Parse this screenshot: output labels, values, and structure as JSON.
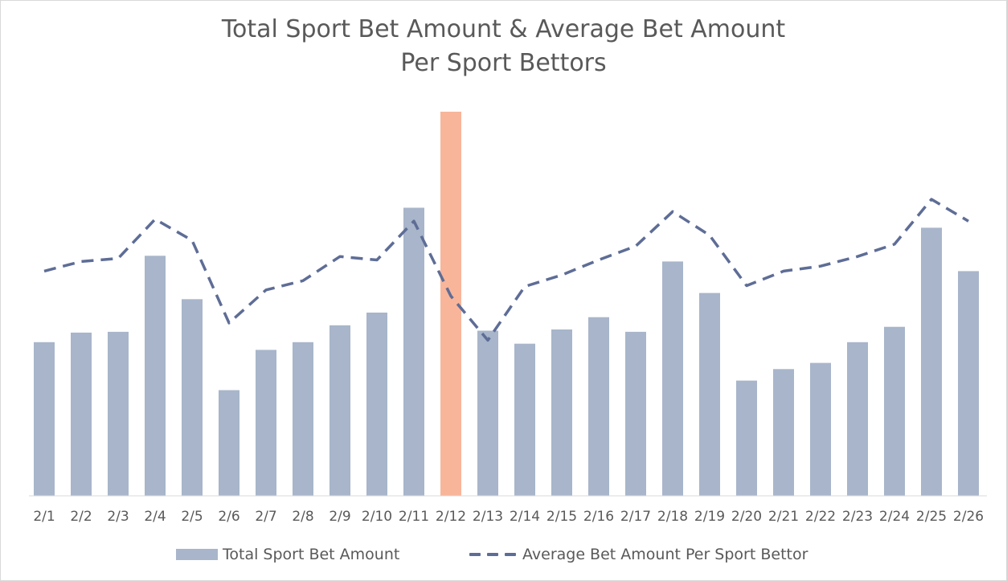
{
  "chart_data": {
    "type": "bar",
    "title": "Total Sport Bet Amount & Average Bet Amount",
    "subtitle": "Per Sport Bettors",
    "categories": [
      "2/1",
      "2/2",
      "2/3",
      "2/4",
      "2/5",
      "2/6",
      "2/7",
      "2/8",
      "2/9",
      "2/10",
      "2/11",
      "2/12",
      "2/13",
      "2/14",
      "2/15",
      "2/16",
      "2/17",
      "2/18",
      "2/19",
      "2/20",
      "2/21",
      "2/22",
      "2/23",
      "2/24",
      "2/25",
      "2/26"
    ],
    "series": [
      {
        "name": "Total Sport Bet Amount",
        "type": "bar",
        "values": [
          40,
          42.5,
          42.7,
          62.5,
          51.2,
          27.5,
          38,
          40,
          44.4,
          47.7,
          75,
          100,
          43,
          39.6,
          43.3,
          46.5,
          42.7,
          61,
          52.8,
          30,
          33,
          34.6,
          40,
          44,
          69.8,
          58.5
        ],
        "highlight_index": 11,
        "color": "#a8b5ca",
        "highlight_color": "#f9b59a"
      },
      {
        "name": "Average Bet Amount Per Sport Bettor",
        "type": "line",
        "style": "dashed",
        "values": [
          58.5,
          61,
          61.8,
          72,
          66.5,
          45,
          53.6,
          56,
          62.3,
          61.4,
          71.5,
          52,
          40.5,
          54.5,
          57.5,
          61.4,
          65,
          74,
          67.8,
          54.7,
          58.5,
          59.8,
          62.3,
          65.5,
          77.2,
          71.5
        ],
        "color": "#5e6d96"
      }
    ],
    "ylim": [
      0,
      100
    ],
    "grid": false,
    "legend_position": "bottom"
  }
}
